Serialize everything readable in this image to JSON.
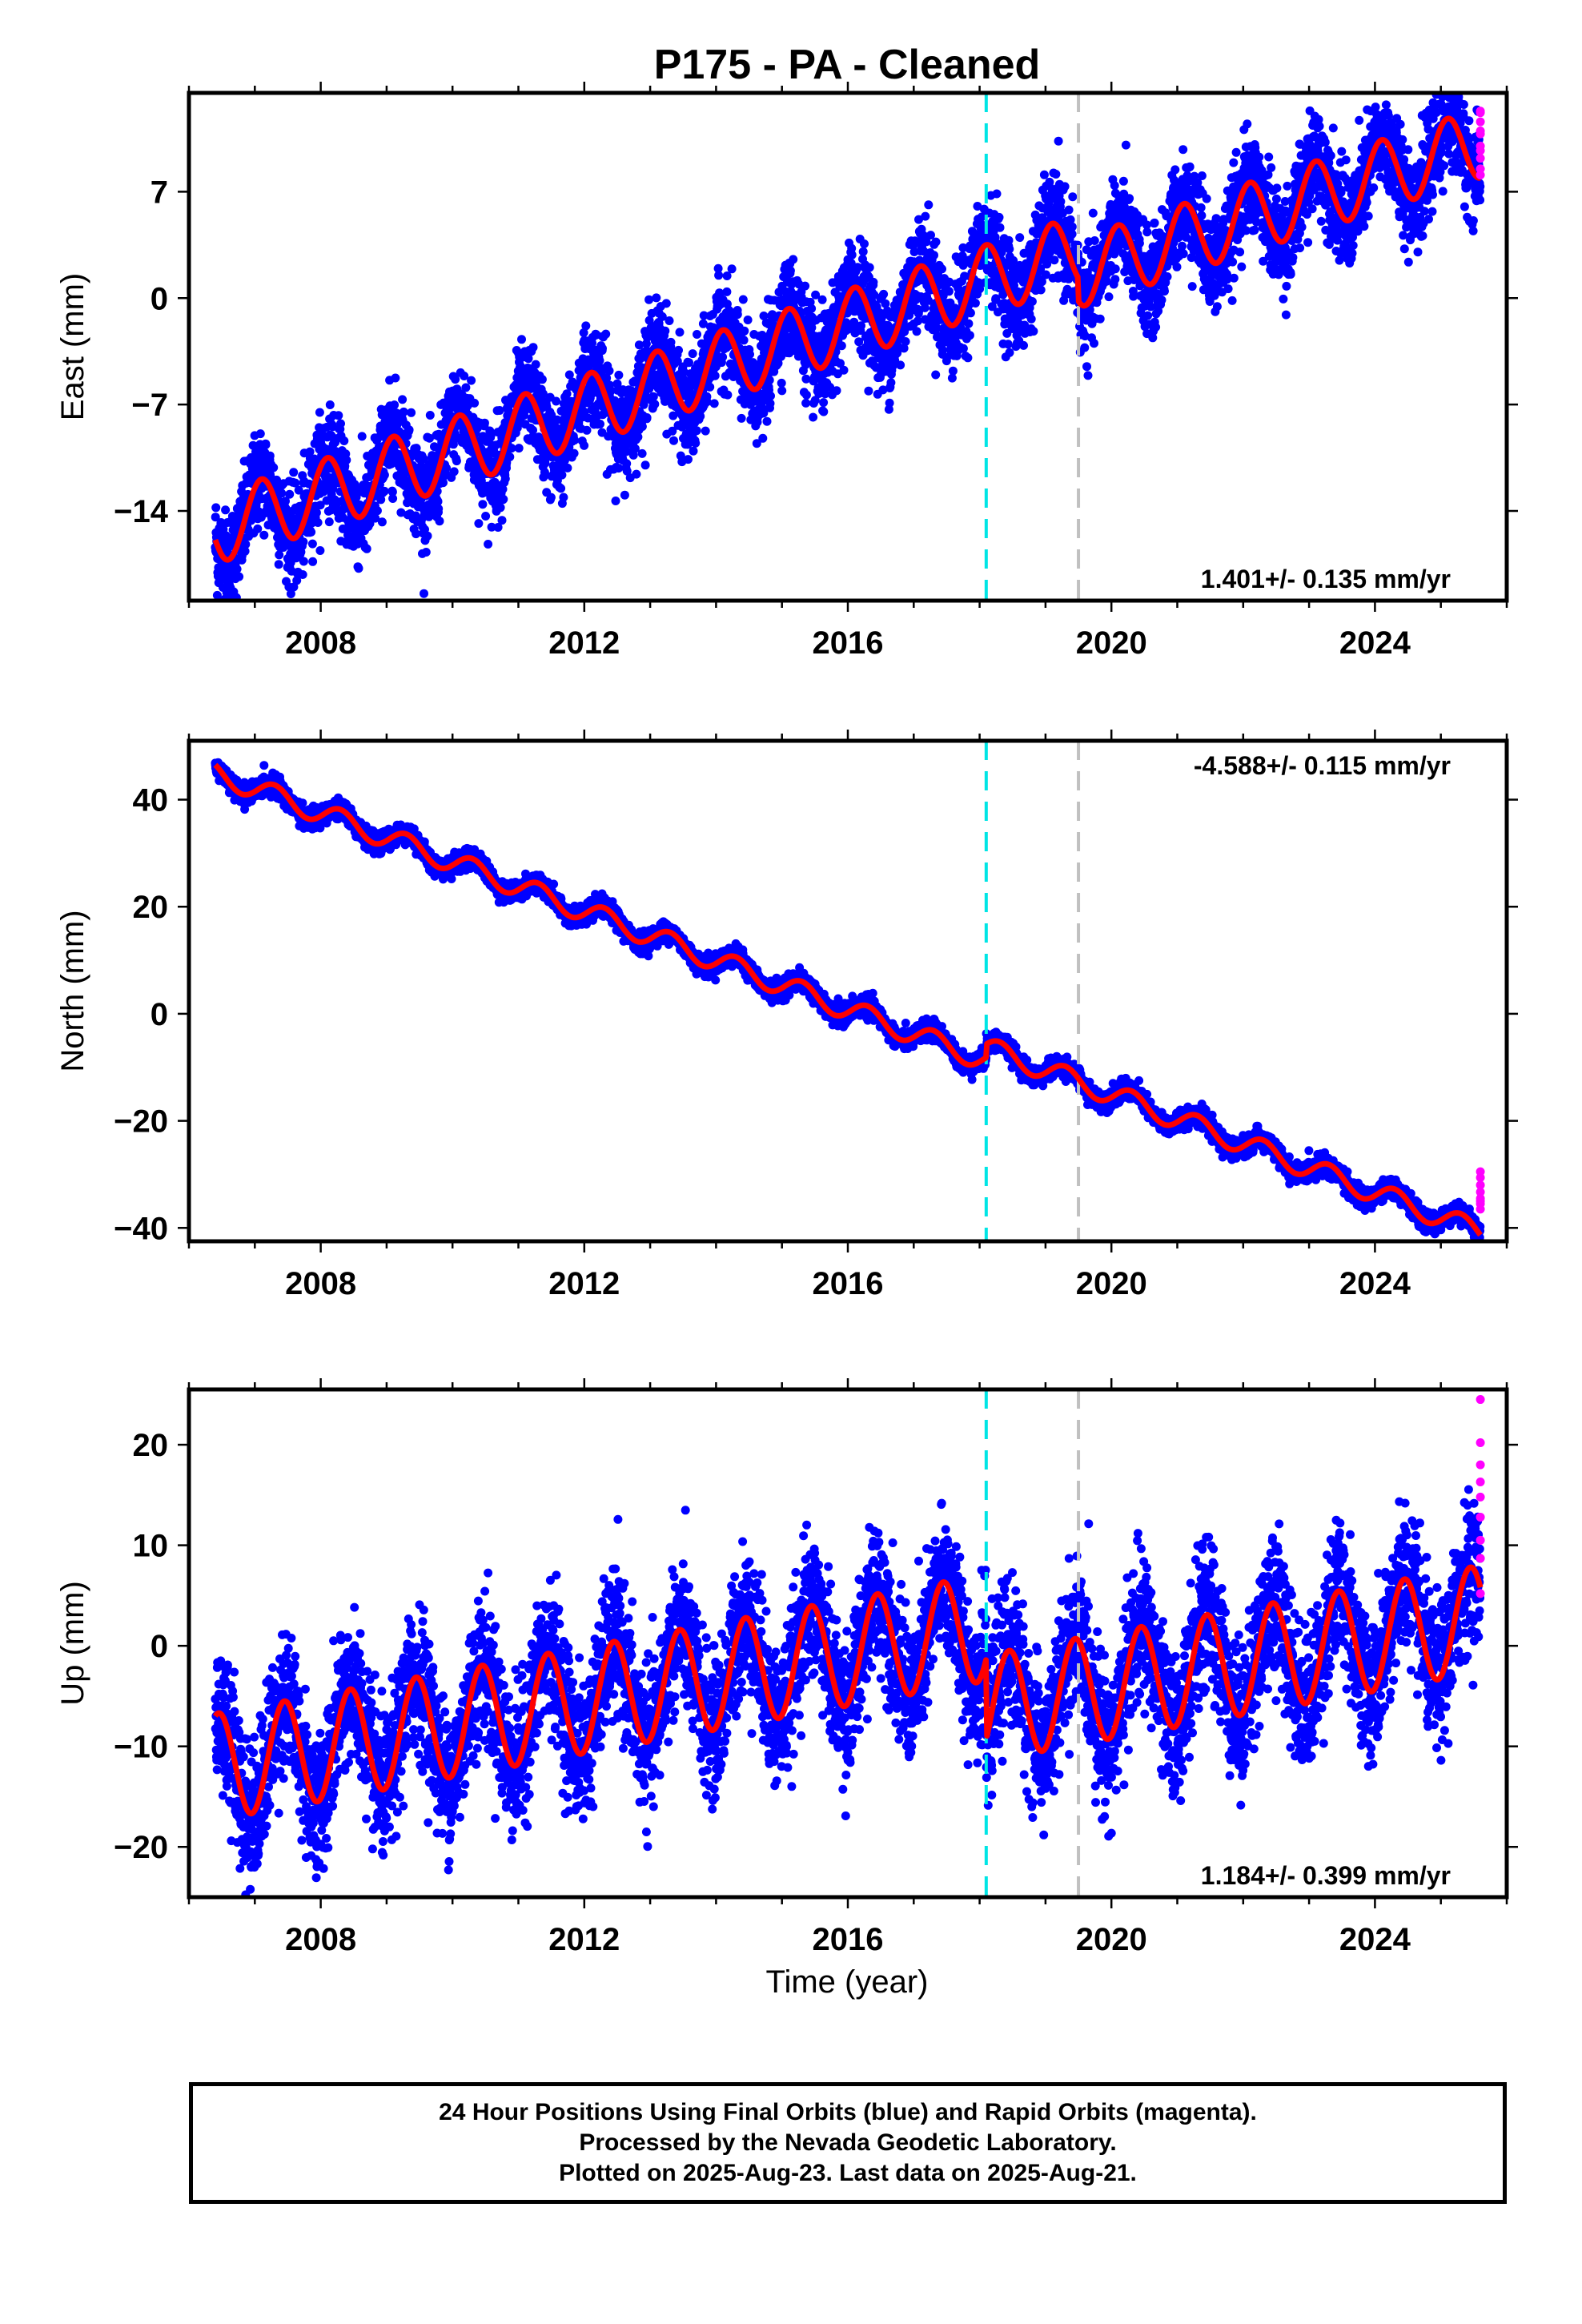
{
  "title": "P175  - PA - Cleaned",
  "xlabel": "Time (year)",
  "colors": {
    "final": "#0000ff",
    "rapid": "#ff00ff",
    "model": "#ff0000",
    "event_cyan": "#00e5e5",
    "event_gray": "#c0c0c0"
  },
  "footer": {
    "line1": "24 Hour Positions Using Final Orbits (blue) and Rapid Orbits (magenta).",
    "line2": "Processed by the Nevada Geodetic Laboratory.",
    "line3": "Plotted on 2025-Aug-23. Last data on 2025-Aug-21."
  },
  "chart_data": [
    {
      "type": "scatter",
      "component": "east",
      "ylabel": "East (mm)",
      "xlim": [
        2006.0,
        2026.0
      ],
      "ylim": [
        -19.9,
        13.5
      ],
      "xticks": [
        2008,
        2012,
        2016,
        2020,
        2024
      ],
      "yticks": [
        -14,
        -7,
        0,
        7
      ],
      "rate_label": "1.401+/- 0.135 mm/yr",
      "rate_position": "bottom-right",
      "event_lines": [
        2018.1,
        2019.5
      ],
      "model": {
        "start_x": 2006.4,
        "start_y": -15.9,
        "end_x": 2025.6,
        "rate": 1.401,
        "annual_amp": 2.3,
        "annual_phase": 0.55,
        "step_at": 2019.5,
        "step": -1.5
      },
      "final_scatter": {
        "sigma": 1.6,
        "n_per_year": 330
      },
      "rapid_points": {
        "x": 2025.6,
        "y": [
          8.1,
          9.2,
          10.0,
          10.8,
          11.6,
          12.2,
          8.5,
          9.7,
          11.0,
          12.3
        ]
      }
    },
    {
      "type": "scatter",
      "component": "north",
      "ylabel": "North (mm)",
      "xlim": [
        2006.0,
        2026.0
      ],
      "ylim": [
        -42.5,
        51.0
      ],
      "xticks": [
        2008,
        2012,
        2016,
        2020,
        2024
      ],
      "yticks": [
        -40,
        -20,
        0,
        20,
        40
      ],
      "rate_label": "-4.588+/- 0.115 mm/yr",
      "rate_position": "top-right",
      "event_lines": [
        2018.1,
        2019.5
      ],
      "model": {
        "start_x": 2006.4,
        "start_y": 46.5,
        "end_x": 2025.6,
        "rate": -4.588,
        "annual_amp": 2.0,
        "annual_phase": 0.35,
        "step_at": 2018.1,
        "step": 2.5
      },
      "final_scatter": {
        "sigma": 0.9,
        "n_per_year": 330
      },
      "rapid_points": {
        "x": 2025.6,
        "y": [
          -36.5,
          -35.5,
          -34.5,
          -33.3,
          -32.0,
          -30.6,
          -29.5,
          -35.0
        ]
      }
    },
    {
      "type": "scatter",
      "component": "up",
      "ylabel": "Up (mm)",
      "xlim": [
        2006.0,
        2026.0
      ],
      "ylim": [
        -25.0,
        25.5
      ],
      "xticks": [
        2008,
        2012,
        2016,
        2020,
        2024
      ],
      "yticks": [
        -20,
        -10,
        0,
        10,
        20
      ],
      "rate_label": "1.184+/- 0.399 mm/yr",
      "rate_position": "bottom-right",
      "event_lines": [
        2018.1,
        2019.5
      ],
      "model": {
        "start_x": 2006.4,
        "start_y": -7.0,
        "end_x": 2025.6,
        "rate": 1.184,
        "annual_amp": 5.3,
        "annual_phase": 0.2,
        "step_at": 2018.1,
        "step": -8.0
      },
      "final_scatter": {
        "sigma": 3.5,
        "n_per_year": 330
      },
      "rapid_points": {
        "x": 2025.6,
        "y": [
          5.2,
          8.7,
          10.5,
          12.8,
          14.8,
          16.3,
          18.0,
          20.2,
          24.5
        ]
      }
    }
  ]
}
